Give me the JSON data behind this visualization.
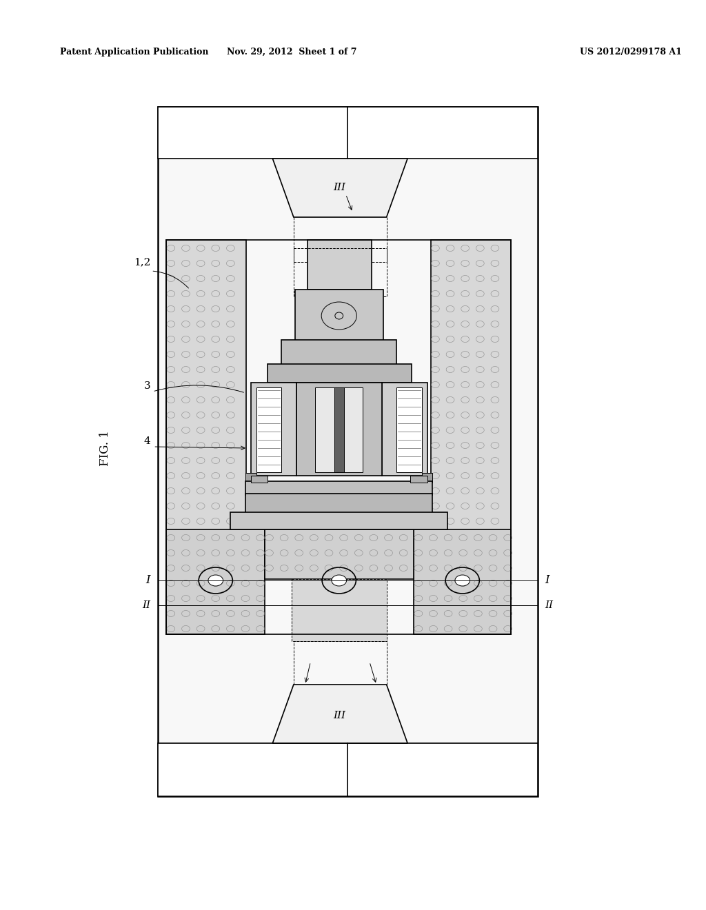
{
  "title_left": "Patent Application Publication",
  "title_mid": "Nov. 29, 2012  Sheet 1 of 7",
  "title_right": "US 2012/0299178 A1",
  "bg_color": "#ffffff",
  "lc": "#000000",
  "gray_hatch": "#c8c8c8",
  "gray_med": "#b0b0b0",
  "gray_light": "#e0e0e0",
  "gray_dark": "#909090"
}
